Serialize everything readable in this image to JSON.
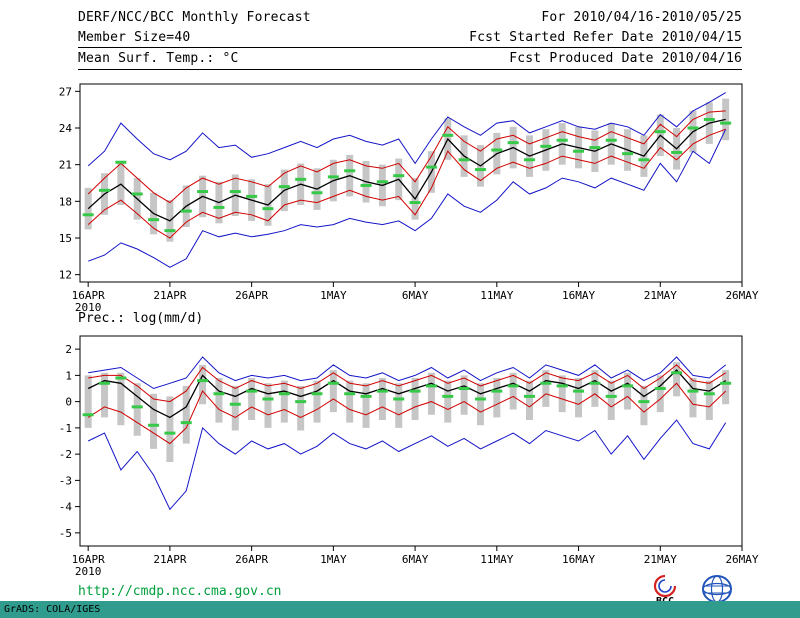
{
  "header": {
    "title": "DERF/NCC/BCC Monthly Forecast",
    "member_size": "Member Size=40",
    "period": "For 2010/04/16-2010/05/25",
    "refer_date": "Fcst Started Refer Date 2010/04/15",
    "produced_date": "Fcst Produced Date 2010/04/16"
  },
  "footer": {
    "url": "http://cmdp.ncc.cma.gov.cn",
    "credit": "GrADS: COLA/IGES",
    "logo_bcc": "BCC"
  },
  "colors": {
    "minmax_line": "#1414c8",
    "quartile_line": "#d20000",
    "mean_line": "#000000",
    "obs_dash": "#36c948",
    "spread_bar": "#c6c6c6",
    "url_green": "#00a03c",
    "strip_teal": "#2f9c8e"
  },
  "chart_data": [
    {
      "type": "line",
      "title": "Mean Surf. Temp.: °C",
      "ylim": [
        11.4,
        27.6
      ],
      "yticks": [
        12,
        15,
        18,
        21,
        24,
        27
      ],
      "xlim": [
        -0.5,
        40
      ],
      "xticks": [
        {
          "i": 0,
          "label": "16APR",
          "sub": "2010"
        },
        {
          "i": 5,
          "label": "21APR"
        },
        {
          "i": 10,
          "label": "26APR"
        },
        {
          "i": 15,
          "label": "1MAY"
        },
        {
          "i": 20,
          "label": "6MAY"
        },
        {
          "i": 25,
          "label": "11MAY"
        },
        {
          "i": 30,
          "label": "16MAY"
        },
        {
          "i": 35,
          "label": "21MAY"
        },
        {
          "i": 40,
          "label": "26MAY"
        }
      ],
      "bars": {
        "name": "ensemble-spread",
        "color": "#c6c6c6",
        "low": [
          15.7,
          16.9,
          17.7,
          16.5,
          15.3,
          14.7,
          15.9,
          16.7,
          16.2,
          16.8,
          16.4,
          16.0,
          17.2,
          17.7,
          17.3,
          18.0,
          18.4,
          17.9,
          17.6,
          18.1,
          16.5,
          18.7,
          21.4,
          20.0,
          19.2,
          20.2,
          20.7,
          20.0,
          20.5,
          21.0,
          20.7,
          20.4,
          21.0,
          20.5,
          20.0,
          21.7,
          20.6,
          22.0,
          22.7,
          23.0
        ],
        "high": [
          19.1,
          20.3,
          21.1,
          19.9,
          18.7,
          18.1,
          19.3,
          20.1,
          19.6,
          20.2,
          19.8,
          19.4,
          20.6,
          21.1,
          20.7,
          21.4,
          21.8,
          21.3,
          21.0,
          21.5,
          19.9,
          22.1,
          24.8,
          23.4,
          22.6,
          23.6,
          24.1,
          23.4,
          23.9,
          24.4,
          24.1,
          23.8,
          24.4,
          23.9,
          23.4,
          25.1,
          24.0,
          25.4,
          26.1,
          26.4
        ]
      },
      "lines": [
        {
          "name": "member-max",
          "color": "#1414c8",
          "width": 1,
          "values": [
            20.9,
            22.1,
            24.4,
            23.1,
            21.9,
            21.4,
            22.1,
            23.6,
            22.4,
            22.6,
            21.6,
            21.9,
            22.4,
            22.9,
            22.4,
            23.1,
            23.4,
            22.9,
            22.6,
            23.1,
            21.1,
            23.1,
            24.9,
            24.1,
            23.4,
            24.4,
            24.6,
            23.6,
            24.1,
            24.6,
            24.1,
            23.9,
            24.4,
            24.1,
            23.4,
            25.1,
            24.1,
            25.4,
            26.1,
            26.9
          ]
        },
        {
          "name": "member-min",
          "color": "#1414c8",
          "width": 1,
          "values": [
            13.1,
            13.6,
            14.6,
            14.1,
            13.4,
            12.6,
            13.3,
            15.6,
            15.1,
            15.4,
            15.1,
            15.3,
            15.6,
            16.1,
            15.9,
            16.1,
            16.6,
            16.3,
            16.1,
            16.4,
            15.6,
            16.6,
            18.6,
            17.6,
            17.1,
            18.1,
            19.6,
            18.6,
            19.1,
            19.9,
            19.6,
            19.1,
            19.9,
            19.4,
            18.9,
            21.1,
            19.6,
            22.1,
            21.1,
            23.9
          ]
        },
        {
          "name": "upper-quartile",
          "color": "#d20000",
          "width": 1,
          "values": [
            18.6,
            19.9,
            21.1,
            19.9,
            18.7,
            17.9,
            19.1,
            19.9,
            19.4,
            19.9,
            19.6,
            19.2,
            20.3,
            20.9,
            20.4,
            21.1,
            21.4,
            20.9,
            20.7,
            21.1,
            19.6,
            21.7,
            24.1,
            22.9,
            22.1,
            23.1,
            23.4,
            22.7,
            23.2,
            23.7,
            23.3,
            23.0,
            23.7,
            23.2,
            22.7,
            24.3,
            23.3,
            24.7,
            25.3,
            25.4
          ]
        },
        {
          "name": "lower-quartile",
          "color": "#d20000",
          "width": 1,
          "values": [
            16.1,
            17.3,
            18.1,
            17.0,
            15.8,
            15.0,
            16.3,
            17.1,
            16.6,
            17.1,
            16.9,
            16.4,
            17.7,
            18.1,
            17.9,
            18.4,
            18.9,
            18.4,
            18.1,
            18.4,
            16.9,
            19.1,
            22.1,
            20.6,
            19.7,
            20.7,
            21.2,
            20.7,
            21.1,
            21.7,
            21.4,
            21.1,
            21.7,
            21.2,
            20.7,
            22.4,
            21.4,
            22.7,
            23.4,
            23.9
          ]
        },
        {
          "name": "ensemble-mean",
          "color": "#000000",
          "width": 1.3,
          "values": [
            17.4,
            18.6,
            19.4,
            18.2,
            17.0,
            16.4,
            17.6,
            18.4,
            17.9,
            18.5,
            18.1,
            17.7,
            18.9,
            19.4,
            19.0,
            19.7,
            20.1,
            19.6,
            19.3,
            19.8,
            18.2,
            20.4,
            23.1,
            21.7,
            20.9,
            21.9,
            22.4,
            21.7,
            22.2,
            22.7,
            22.4,
            22.1,
            22.7,
            22.2,
            21.7,
            23.4,
            22.3,
            23.7,
            24.4,
            24.7
          ]
        }
      ],
      "dashes": {
        "name": "daily-marker",
        "color": "#36c948",
        "width": 3,
        "values": [
          16.9,
          18.9,
          21.2,
          18.6,
          16.5,
          15.6,
          17.2,
          18.8,
          17.5,
          18.8,
          18.4,
          17.4,
          19.2,
          19.8,
          18.7,
          20.0,
          20.5,
          19.3,
          19.6,
          20.1,
          17.9,
          20.8,
          23.4,
          21.4,
          20.6,
          22.2,
          22.8,
          21.4,
          22.5,
          23.0,
          22.1,
          22.4,
          23.0,
          21.9,
          21.4,
          23.7,
          22.0,
          24.0,
          24.7,
          24.4
        ]
      }
    },
    {
      "type": "line",
      "title": "Prec.: log(mm/d)",
      "ylim": [
        -5.5,
        2.5
      ],
      "yticks": [
        -5,
        -4,
        -3,
        -2,
        -1,
        0,
        1,
        2
      ],
      "xlim": [
        -0.5,
        40
      ],
      "xticks": [
        {
          "i": 0,
          "label": "16APR",
          "sub": "2010"
        },
        {
          "i": 5,
          "label": "21APR"
        },
        {
          "i": 10,
          "label": "26APR"
        },
        {
          "i": 15,
          "label": "1MAY"
        },
        {
          "i": 20,
          "label": "6MAY"
        },
        {
          "i": 25,
          "label": "11MAY"
        },
        {
          "i": 30,
          "label": "16MAY"
        },
        {
          "i": 35,
          "label": "21MAY"
        },
        {
          "i": 40,
          "label": "26MAY"
        }
      ],
      "bars": {
        "name": "ensemble-spread",
        "color": "#c6c6c6",
        "low": [
          -1.0,
          -0.6,
          -0.9,
          -1.3,
          -1.8,
          -2.3,
          -1.6,
          -0.1,
          -0.8,
          -1.1,
          -0.7,
          -1.0,
          -0.8,
          -1.1,
          -0.8,
          -0.4,
          -0.8,
          -1.0,
          -0.7,
          -1.0,
          -0.7,
          -0.5,
          -0.8,
          -0.5,
          -0.9,
          -0.6,
          -0.3,
          -0.7,
          -0.2,
          -0.4,
          -0.6,
          -0.2,
          -0.7,
          -0.3,
          -0.9,
          -0.4,
          0.2,
          -0.6,
          -0.7,
          -0.1
        ],
        "high": [
          1.0,
          1.1,
          1.1,
          0.7,
          0.3,
          0.2,
          0.6,
          1.4,
          0.9,
          0.6,
          0.9,
          0.7,
          0.8,
          0.6,
          0.8,
          1.2,
          0.8,
          0.7,
          0.9,
          0.7,
          0.9,
          1.1,
          0.8,
          1.0,
          0.7,
          0.9,
          1.1,
          0.8,
          1.2,
          1.0,
          0.9,
          1.2,
          0.8,
          1.1,
          0.6,
          1.0,
          1.5,
          0.9,
          0.8,
          1.2
        ]
      },
      "lines": [
        {
          "name": "member-max",
          "color": "#1414c8",
          "width": 1,
          "values": [
            1.1,
            1.2,
            1.3,
            0.9,
            0.5,
            0.7,
            0.9,
            1.7,
            1.1,
            0.8,
            1.0,
            0.9,
            1.0,
            0.8,
            0.9,
            1.4,
            1.0,
            0.9,
            1.1,
            0.8,
            1.0,
            1.3,
            0.9,
            1.2,
            0.8,
            1.1,
            1.3,
            0.9,
            1.4,
            1.2,
            1.0,
            1.4,
            0.9,
            1.2,
            0.8,
            1.1,
            1.7,
            1.0,
            0.9,
            1.4
          ]
        },
        {
          "name": "member-min",
          "color": "#1414c8",
          "width": 1,
          "values": [
            -1.5,
            -1.2,
            -2.6,
            -1.9,
            -2.8,
            -4.1,
            -3.4,
            -1.0,
            -1.6,
            -2.0,
            -1.5,
            -1.8,
            -1.6,
            -2.0,
            -1.7,
            -1.2,
            -1.6,
            -1.8,
            -1.5,
            -1.9,
            -1.6,
            -1.3,
            -1.7,
            -1.4,
            -1.8,
            -1.5,
            -1.2,
            -1.6,
            -1.1,
            -1.3,
            -1.5,
            -1.1,
            -2.0,
            -1.3,
            -2.2,
            -1.4,
            -0.7,
            -1.6,
            -1.8,
            -0.8
          ]
        },
        {
          "name": "upper-quartile",
          "color": "#d20000",
          "width": 1,
          "values": [
            0.9,
            1.0,
            1.0,
            0.6,
            0.1,
            0.0,
            0.4,
            1.3,
            0.8,
            0.5,
            0.8,
            0.6,
            0.7,
            0.5,
            0.7,
            1.1,
            0.7,
            0.6,
            0.8,
            0.6,
            0.8,
            1.0,
            0.7,
            0.9,
            0.6,
            0.8,
            1.0,
            0.7,
            1.1,
            0.9,
            0.8,
            1.1,
            0.7,
            1.0,
            0.5,
            0.9,
            1.4,
            0.8,
            0.7,
            1.1
          ]
        },
        {
          "name": "lower-quartile",
          "color": "#d20000",
          "width": 1,
          "values": [
            -0.6,
            -0.2,
            -0.4,
            -0.8,
            -1.2,
            -1.6,
            -1.0,
            0.4,
            -0.3,
            -0.6,
            -0.2,
            -0.5,
            -0.3,
            -0.6,
            -0.3,
            0.1,
            -0.3,
            -0.5,
            -0.2,
            -0.5,
            -0.2,
            0.0,
            -0.3,
            0.0,
            -0.4,
            -0.1,
            0.2,
            -0.2,
            0.3,
            0.1,
            -0.1,
            0.3,
            -0.2,
            0.2,
            -0.4,
            0.1,
            0.7,
            -0.1,
            -0.2,
            0.4
          ]
        },
        {
          "name": "ensemble-mean",
          "color": "#000000",
          "width": 1.3,
          "values": [
            0.5,
            0.8,
            0.7,
            0.2,
            -0.3,
            -0.6,
            -0.2,
            1.0,
            0.4,
            0.2,
            0.5,
            0.3,
            0.4,
            0.2,
            0.4,
            0.8,
            0.4,
            0.3,
            0.5,
            0.3,
            0.5,
            0.7,
            0.4,
            0.6,
            0.3,
            0.5,
            0.7,
            0.4,
            0.8,
            0.7,
            0.5,
            0.8,
            0.4,
            0.7,
            0.2,
            0.6,
            1.2,
            0.5,
            0.4,
            0.8
          ]
        }
      ],
      "dashes": {
        "name": "daily-marker",
        "color": "#36c948",
        "width": 3,
        "values": [
          -0.5,
          0.7,
          0.9,
          -0.2,
          -0.9,
          -1.2,
          -0.8,
          0.8,
          0.3,
          -0.1,
          0.4,
          0.1,
          0.3,
          0.0,
          0.3,
          0.7,
          0.3,
          0.2,
          0.4,
          0.1,
          0.4,
          0.6,
          0.2,
          0.5,
          0.1,
          0.4,
          0.6,
          0.2,
          0.7,
          0.6,
          0.4,
          0.7,
          0.2,
          0.6,
          0.0,
          0.5,
          1.1,
          0.4,
          0.3,
          0.7
        ]
      }
    }
  ]
}
